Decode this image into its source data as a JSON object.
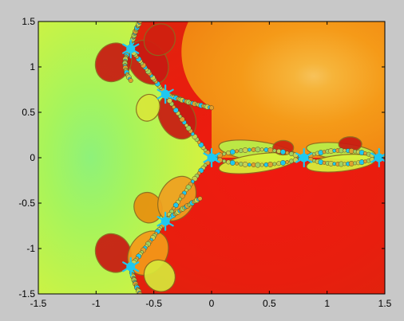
{
  "chart_data": {
    "type": "heatmap",
    "title": "",
    "xlabel": "",
    "ylabel": "",
    "xlim": [
      -1.5,
      1.5
    ],
    "ylim": [
      -1.5,
      1.5
    ],
    "grid": false,
    "legend": "none",
    "x_ticks": [
      -1.5,
      -1,
      -0.5,
      0,
      0.5,
      1,
      1.5
    ],
    "x_tick_labels": [
      "-1.5",
      "-1",
      "-0.5",
      "0",
      "0.5",
      "1",
      "1.5"
    ],
    "y_ticks": [
      1.5,
      1,
      0.5,
      0,
      -0.5,
      -1,
      -1.5
    ],
    "y_tick_labels": [
      "1.5",
      "1",
      "0.5",
      "0",
      "-0.5",
      "-1",
      "-1.5"
    ],
    "basins": [
      {
        "region": "left",
        "color": "#b4f54a"
      },
      {
        "region": "upper-right",
        "color": "#f59a16"
      },
      {
        "region": "lower-right",
        "color": "#e41e0e"
      }
    ],
    "boundary_color": "#1ec8f0",
    "critical_points": [
      {
        "x": 0,
        "y": 0
      },
      {
        "x": -0.7,
        "y": 1.2
      },
      {
        "x": -0.4,
        "y": 0.7
      },
      {
        "x": -0.4,
        "y": -0.7
      },
      {
        "x": -0.7,
        "y": -1.2
      },
      {
        "x": 0.8,
        "y": 0
      },
      {
        "x": 1.45,
        "y": 0
      }
    ]
  },
  "colors": {
    "background": "#c8c8c8",
    "axis": "#000000"
  }
}
